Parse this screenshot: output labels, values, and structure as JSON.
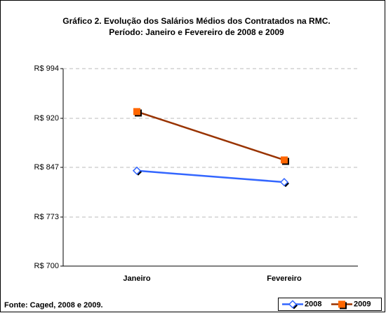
{
  "chart_data": {
    "type": "line",
    "title": "Gráfico 2. Evolução dos Salários Médios dos Contratados na RMC.  Período: Janeiro e Fevereiro de 2008 e 2009",
    "source": "Fonte: Caged, 2008 e 2009.",
    "categories": [
      "Janeiro",
      "Fevereiro"
    ],
    "series": [
      {
        "name": "2008",
        "color": "#3366ff",
        "marker_color": "#3366ff",
        "values": [
          842,
          825
        ]
      },
      {
        "name": "2009",
        "color": "#993300",
        "marker_color": "#ff6600",
        "values": [
          930,
          858
        ]
      }
    ],
    "ylim": [
      700,
      994
    ],
    "yticks": [
      {
        "value": 700,
        "label": "R$ 700"
      },
      {
        "value": 773,
        "label": "R$ 773"
      },
      {
        "value": 847,
        "label": "R$ 847"
      },
      {
        "value": 920,
        "label": "R$ 920"
      },
      {
        "value": 994,
        "label": "R$ 994"
      }
    ],
    "grid": true
  }
}
